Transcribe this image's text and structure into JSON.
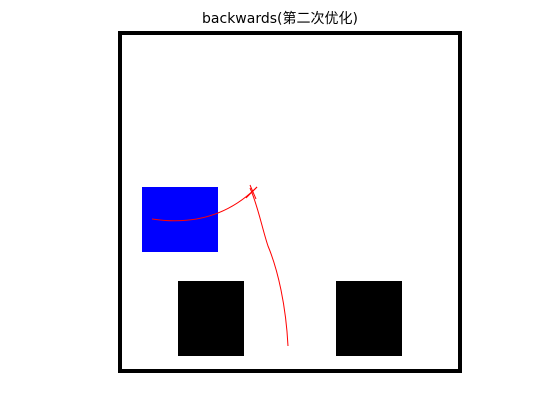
{
  "title": "backwards(第二次优化)",
  "colors": {
    "border": "#000000",
    "vehicle": "#0000ff",
    "obstacle": "#000000",
    "path": "#ff0000",
    "background": "#ffffff"
  }
}
